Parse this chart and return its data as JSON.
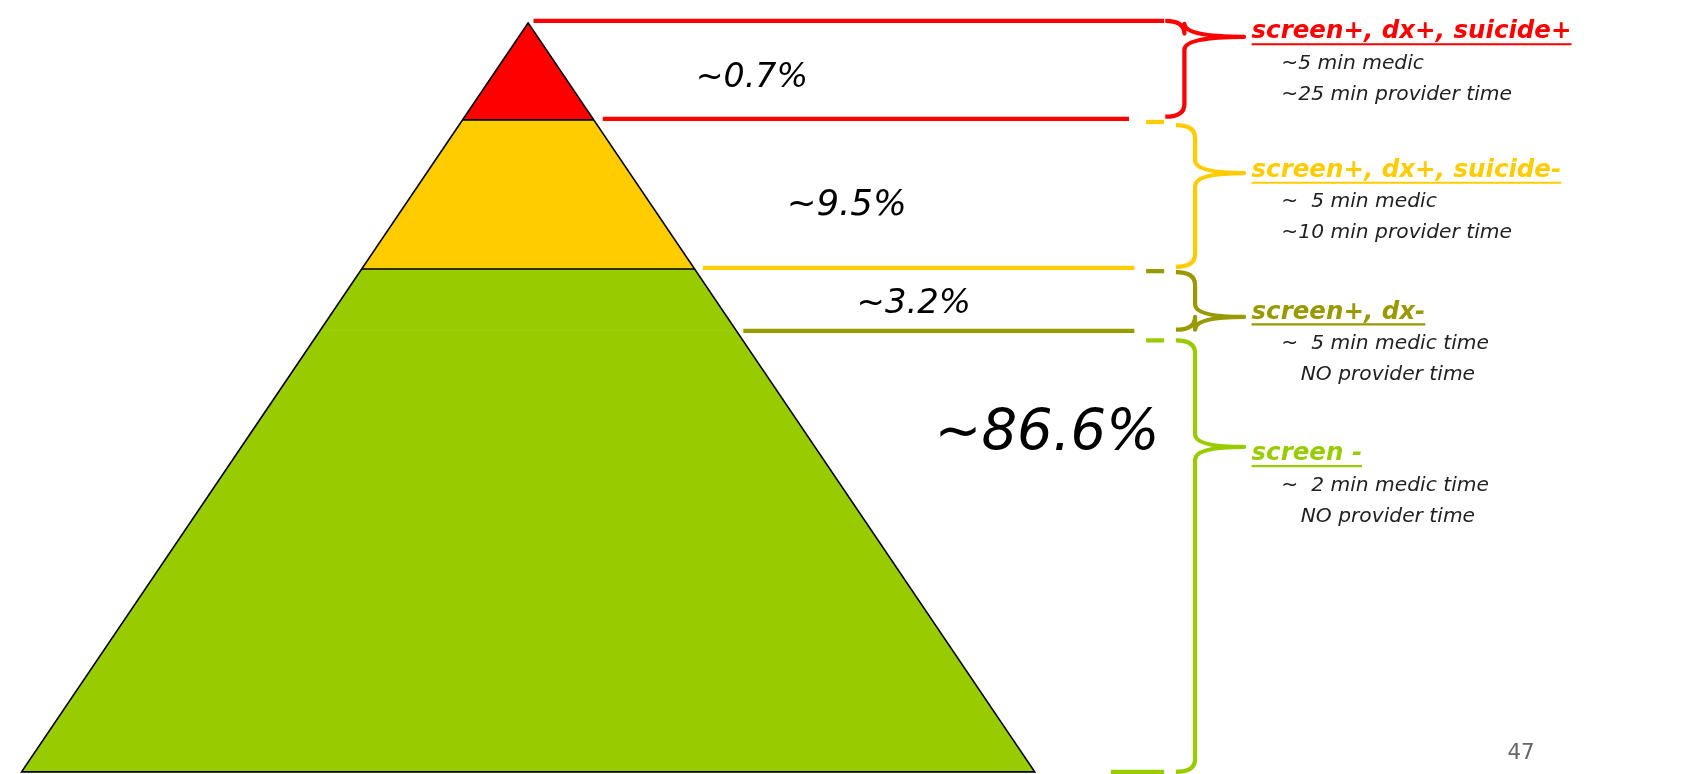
{
  "chart_data": {
    "type": "other",
    "categories": [
      "screen+, dx+, suicide+",
      "screen+, dx+, suicide-",
      "screen+, dx-",
      "screen -"
    ],
    "values": [
      0.7,
      9.5,
      3.2,
      86.6
    ],
    "value_labels": [
      "~0.7%",
      "~9.5%",
      "~3.2%",
      "~86.6%"
    ],
    "colors": [
      "#ff0000",
      "#ffcc00",
      "#999900",
      "#99cc00"
    ],
    "annotations": [
      "~5 min medic",
      "~25 min provider time",
      "~  5 min medic",
      "~10 min provider time",
      "~  5 min medic time",
      "   NO provider time",
      "~  2 min medic time",
      "   NO provider time",
      "47"
    ]
  }
}
